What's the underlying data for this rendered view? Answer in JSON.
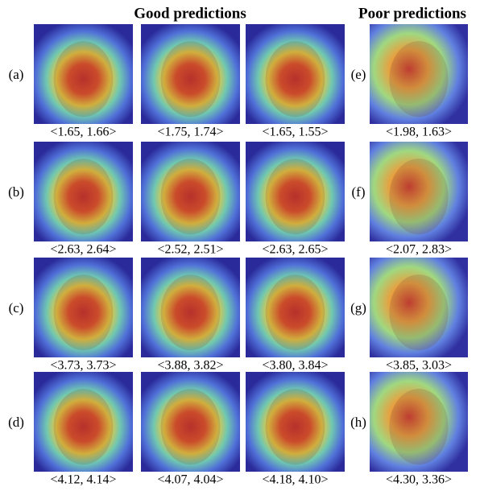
{
  "headings": {
    "good": "Good predictions",
    "poor": "Poor predictions"
  },
  "rows": [
    {
      "label": "(a)",
      "good": [
        "<1.65, 1.66>",
        "<1.75, 1.74>",
        "<1.65, 1.55>"
      ],
      "poor_label": "(e)",
      "poor": "<1.98, 1.63>"
    },
    {
      "label": "(b)",
      "good": [
        "<2.63, 2.64>",
        "<2.52, 2.51>",
        "<2.63, 2.65>"
      ],
      "poor_label": "(f)",
      "poor": "<2.07, 2.83>"
    },
    {
      "label": "(c)",
      "good": [
        "<3.73, 3.73>",
        "<3.88, 3.82>",
        "<3.80, 3.84>"
      ],
      "poor_label": "(g)",
      "poor": "<3.85, 3.03>"
    },
    {
      "label": "(d)",
      "good": [
        "<4.12, 4.14>",
        "<4.07, 4.04>",
        "<4.18, 4.10>"
      ],
      "poor_label": "(h)",
      "poor": "<4.30, 3.36>"
    }
  ]
}
